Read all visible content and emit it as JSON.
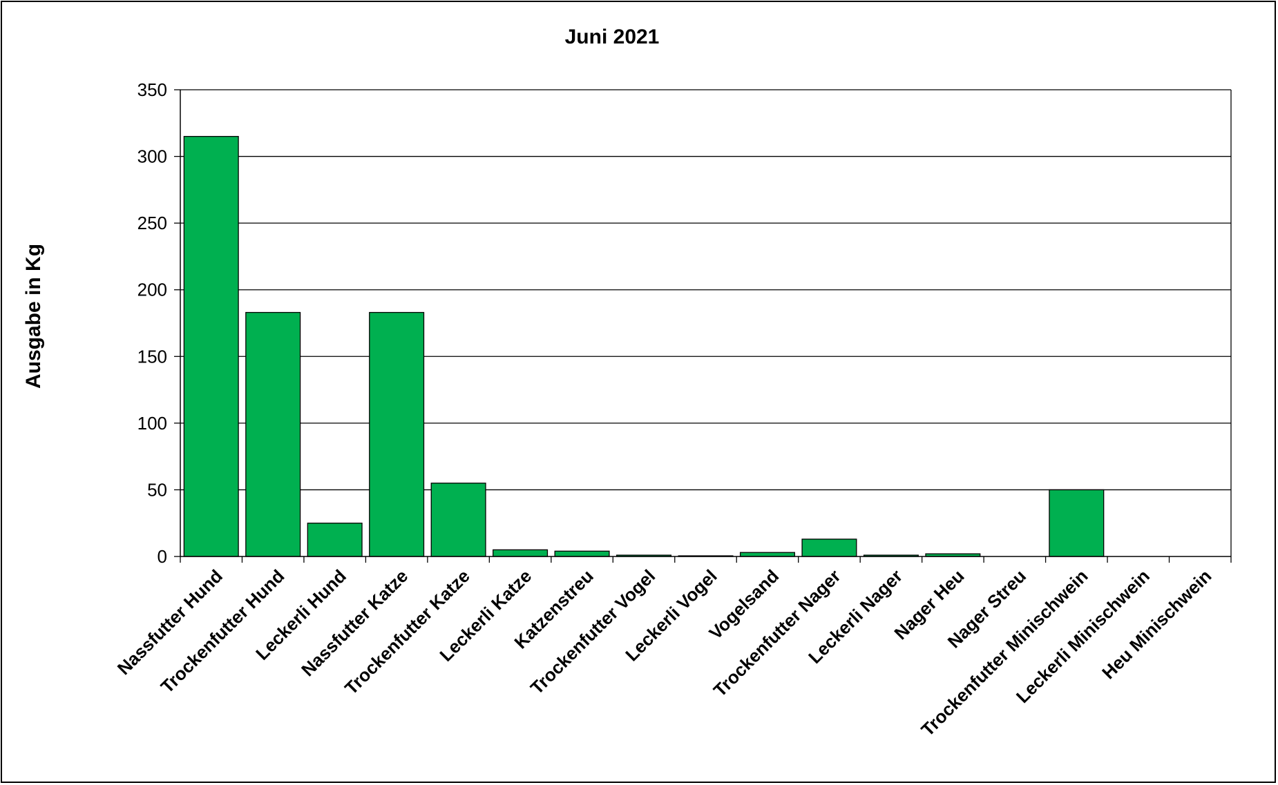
{
  "chart_data": {
    "type": "bar",
    "title": "Juni 2021",
    "xlabel": "",
    "ylabel": "Ausgabe in Kg",
    "ylim": [
      0,
      350
    ],
    "yticks": [
      0,
      50,
      100,
      150,
      200,
      250,
      300,
      350
    ],
    "grid": true,
    "legend": "none",
    "bar_color": "#00B050",
    "categories": [
      "Nassfutter Hund",
      "Trockenfutter Hund",
      "Leckerli Hund",
      "Nassfutter Katze",
      "Trockenfutter Katze",
      "Leckerli Katze",
      "Katzenstreu",
      "Trockenfutter Vogel",
      "Leckerli Vogel",
      "Vogelsand",
      "Trockenfutter Nager",
      "Leckerli Nager",
      "Nager Heu",
      "Nager Streu",
      "Trockenfutter Minischwein",
      "Leckerli Minischwein",
      "Heu Minischwein"
    ],
    "values": [
      315,
      183,
      25,
      183,
      55,
      5,
      4,
      1,
      0.5,
      3,
      13,
      1,
      2,
      0,
      50,
      0,
      0
    ]
  }
}
